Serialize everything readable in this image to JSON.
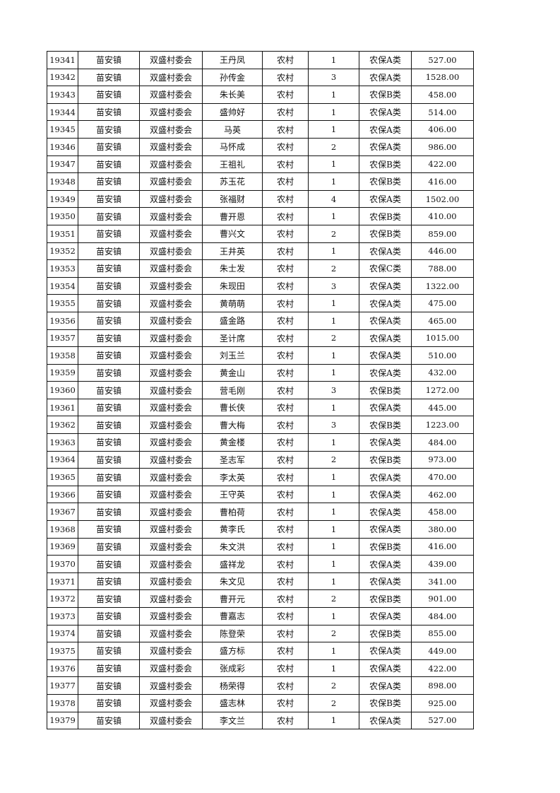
{
  "table": {
    "rows": [
      [
        "19341",
        "苗安镇",
        "双盛村委会",
        "王丹凤",
        "农村",
        "1",
        "农保A类",
        "527.00"
      ],
      [
        "19342",
        "苗安镇",
        "双盛村委会",
        "孙传金",
        "农村",
        "3",
        "农保A类",
        "1528.00"
      ],
      [
        "19343",
        "苗安镇",
        "双盛村委会",
        "朱长美",
        "农村",
        "1",
        "农保B类",
        "458.00"
      ],
      [
        "19344",
        "苗安镇",
        "双盛村委会",
        "盛帅好",
        "农村",
        "1",
        "农保A类",
        "514.00"
      ],
      [
        "19345",
        "苗安镇",
        "双盛村委会",
        "马英",
        "农村",
        "1",
        "农保A类",
        "406.00"
      ],
      [
        "19346",
        "苗安镇",
        "双盛村委会",
        "马怀成",
        "农村",
        "2",
        "农保A类",
        "986.00"
      ],
      [
        "19347",
        "苗安镇",
        "双盛村委会",
        "王祖礼",
        "农村",
        "1",
        "农保B类",
        "422.00"
      ],
      [
        "19348",
        "苗安镇",
        "双盛村委会",
        "苏玉花",
        "农村",
        "1",
        "农保B类",
        "416.00"
      ],
      [
        "19349",
        "苗安镇",
        "双盛村委会",
        "张福财",
        "农村",
        "4",
        "农保A类",
        "1502.00"
      ],
      [
        "19350",
        "苗安镇",
        "双盛村委会",
        "曹开恩",
        "农村",
        "1",
        "农保B类",
        "410.00"
      ],
      [
        "19351",
        "苗安镇",
        "双盛村委会",
        "曹兴文",
        "农村",
        "2",
        "农保B类",
        "859.00"
      ],
      [
        "19352",
        "苗安镇",
        "双盛村委会",
        "王井英",
        "农村",
        "1",
        "农保A类",
        "446.00"
      ],
      [
        "19353",
        "苗安镇",
        "双盛村委会",
        "朱士发",
        "农村",
        "2",
        "农保C类",
        "788.00"
      ],
      [
        "19354",
        "苗安镇",
        "双盛村委会",
        "朱现田",
        "农村",
        "3",
        "农保A类",
        "1322.00"
      ],
      [
        "19355",
        "苗安镇",
        "双盛村委会",
        "黄萌萌",
        "农村",
        "1",
        "农保A类",
        "475.00"
      ],
      [
        "19356",
        "苗安镇",
        "双盛村委会",
        "盛金路",
        "农村",
        "1",
        "农保A类",
        "465.00"
      ],
      [
        "19357",
        "苗安镇",
        "双盛村委会",
        "圣计席",
        "农村",
        "2",
        "农保A类",
        "1015.00"
      ],
      [
        "19358",
        "苗安镇",
        "双盛村委会",
        "刘玉兰",
        "农村",
        "1",
        "农保A类",
        "510.00"
      ],
      [
        "19359",
        "苗安镇",
        "双盛村委会",
        "黄金山",
        "农村",
        "1",
        "农保A类",
        "432.00"
      ],
      [
        "19360",
        "苗安镇",
        "双盛村委会",
        "营毛刚",
        "农村",
        "3",
        "农保B类",
        "1272.00"
      ],
      [
        "19361",
        "苗安镇",
        "双盛村委会",
        "曹长侠",
        "农村",
        "1",
        "农保A类",
        "445.00"
      ],
      [
        "19362",
        "苗安镇",
        "双盛村委会",
        "曹大梅",
        "农村",
        "3",
        "农保B类",
        "1223.00"
      ],
      [
        "19363",
        "苗安镇",
        "双盛村委会",
        "黄金楼",
        "农村",
        "1",
        "农保A类",
        "484.00"
      ],
      [
        "19364",
        "苗安镇",
        "双盛村委会",
        "圣志军",
        "农村",
        "2",
        "农保B类",
        "973.00"
      ],
      [
        "19365",
        "苗安镇",
        "双盛村委会",
        "李太英",
        "农村",
        "1",
        "农保A类",
        "470.00"
      ],
      [
        "19366",
        "苗安镇",
        "双盛村委会",
        "王守英",
        "农村",
        "1",
        "农保A类",
        "462.00"
      ],
      [
        "19367",
        "苗安镇",
        "双盛村委会",
        "曹柏荷",
        "农村",
        "1",
        "农保A类",
        "458.00"
      ],
      [
        "19368",
        "苗安镇",
        "双盛村委会",
        "黄李氏",
        "农村",
        "1",
        "农保A类",
        "380.00"
      ],
      [
        "19369",
        "苗安镇",
        "双盛村委会",
        "朱文洪",
        "农村",
        "1",
        "农保B类",
        "416.00"
      ],
      [
        "19370",
        "苗安镇",
        "双盛村委会",
        "盛祥龙",
        "农村",
        "1",
        "农保A类",
        "439.00"
      ],
      [
        "19371",
        "苗安镇",
        "双盛村委会",
        "朱文见",
        "农村",
        "1",
        "农保A类",
        "341.00"
      ],
      [
        "19372",
        "苗安镇",
        "双盛村委会",
        "曹开元",
        "农村",
        "2",
        "农保B类",
        "901.00"
      ],
      [
        "19373",
        "苗安镇",
        "双盛村委会",
        "曹嘉志",
        "农村",
        "1",
        "农保A类",
        "484.00"
      ],
      [
        "19374",
        "苗安镇",
        "双盛村委会",
        "陈登荣",
        "农村",
        "2",
        "农保B类",
        "855.00"
      ],
      [
        "19375",
        "苗安镇",
        "双盛村委会",
        "盛方标",
        "农村",
        "1",
        "农保A类",
        "449.00"
      ],
      [
        "19376",
        "苗安镇",
        "双盛村委会",
        "张成彩",
        "农村",
        "1",
        "农保A类",
        "422.00"
      ],
      [
        "19377",
        "苗安镇",
        "双盛村委会",
        "杨荣得",
        "农村",
        "2",
        "农保A类",
        "898.00"
      ],
      [
        "19378",
        "苗安镇",
        "双盛村委会",
        "盛志林",
        "农村",
        "2",
        "农保B类",
        "925.00"
      ],
      [
        "19379",
        "苗安镇",
        "双盛村委会",
        "李文兰",
        "农村",
        "1",
        "农保A类",
        "527.00"
      ]
    ]
  }
}
